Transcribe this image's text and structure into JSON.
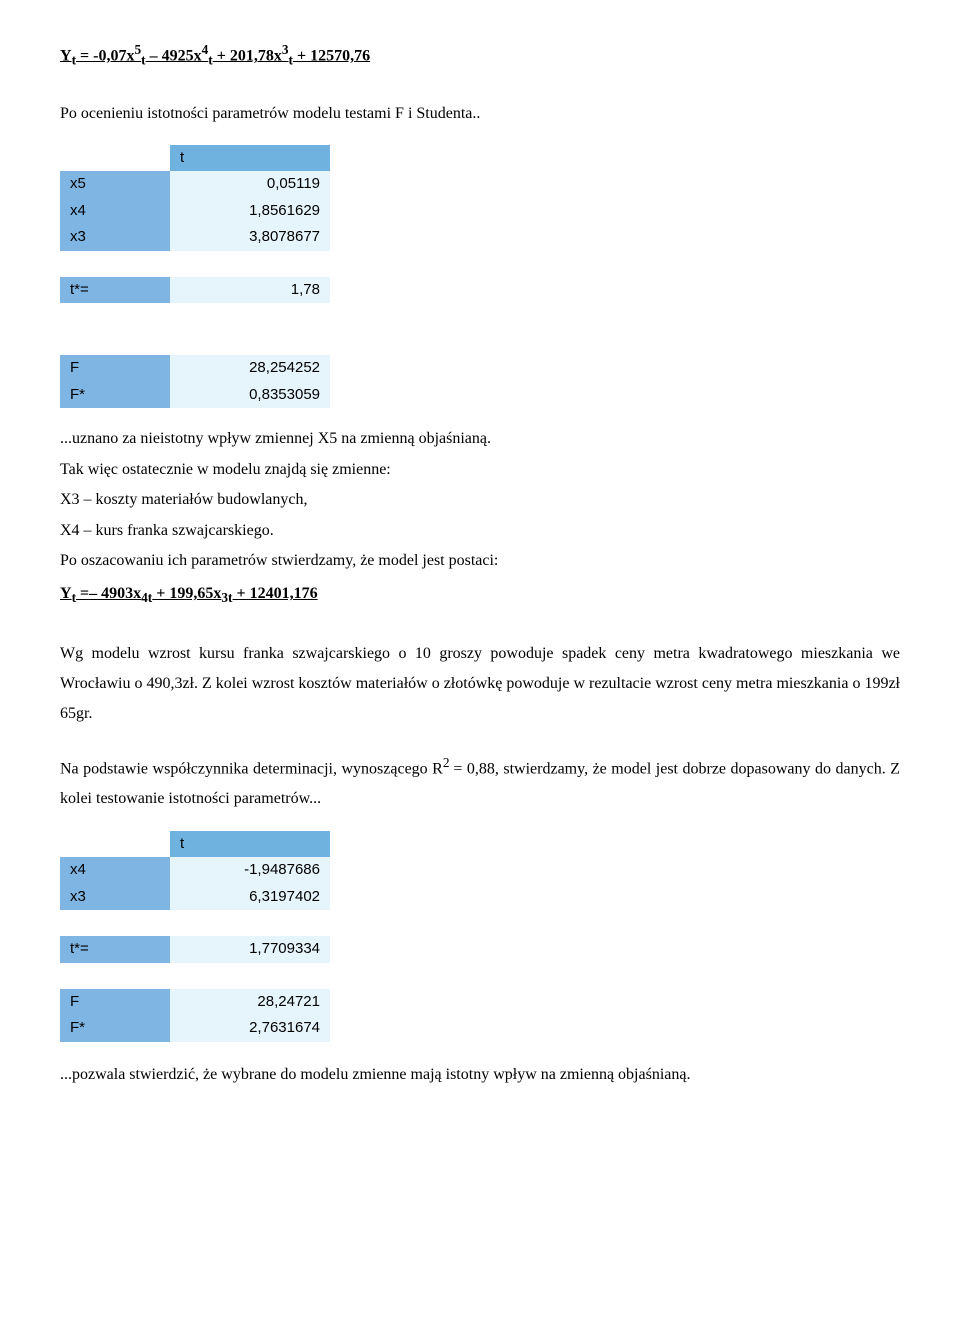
{
  "formula1_html": "Y<sub>t</sub> = -0,07x<sup>5</sup><sub>t</sub> – 4925x<sup>4</sup><sub>t</sub> + 201,78x<sup>3</sup><sub>t</sub> + 12570,76",
  "text_intro": "Po ocenieniu istotności parametrów modelu testami F i Studenta..",
  "table1": {
    "header_col": "t",
    "rows": [
      {
        "label": "x5",
        "value": "0,05119"
      },
      {
        "label": "x4",
        "value": "1,8561629"
      },
      {
        "label": "x3",
        "value": "3,8078677"
      }
    ],
    "tstar": {
      "label": "t*=",
      "value": "1,78"
    },
    "F": {
      "label": "F",
      "value": "28,254252"
    },
    "Fs": {
      "label": "F*",
      "value": "0,8353059"
    },
    "colors": {
      "header": "#6fb1df",
      "label": "#7eb5e2",
      "value": "#e6f4fb"
    }
  },
  "para_uznano": "...uznano za nieistotny wpływ zmiennej X5 na zmienną objaśnianą.",
  "para_tak": "Tak więc ostatecznie w modelu znajdą się zmienne:",
  "para_x3": "X3 – koszty materiałów budowlanych,",
  "para_x4": "X4 – kurs franka szwajcarskiego.",
  "para_posz": "Po oszacowaniu ich parametrów stwierdzamy, że model jest postaci:",
  "formula2_html": "Y<sub>t</sub> =– 4903x<sub>4t</sub> + 199,65x<sub>3t</sub> + 12401,176",
  "para_wg": "Wg modelu wzrost kursu franka szwajcarskiego o 10 groszy powoduje spadek ceny metra kwadratowego mieszkania we Wrocławiu o 490,3zł. Z kolei wzrost kosztów materiałów o złotówkę powoduje  w rezultacie wzrost ceny metra mieszkania o 199zł 65gr.",
  "para_na_html": "Na podstawie współczynnika determinacji, wynoszącego R<sup>2 </sup>= 0,88, stwierdzamy, że model jest dobrze dopasowany do danych. Z kolei testowanie istotności parametrów...",
  "table2": {
    "header_col": "t",
    "rows": [
      {
        "label": "x4",
        "value": "-1,9487686"
      },
      {
        "label": "x3",
        "value": "6,3197402"
      }
    ],
    "tstar": {
      "label": "t*=",
      "value": "1,7709334"
    },
    "F": {
      "label": "F",
      "value": "28,24721"
    },
    "Fs": {
      "label": "F*",
      "value": "2,7631674"
    },
    "colors": {
      "header": "#6fb1df",
      "label": "#7eb5e2",
      "value": "#e6f4fb"
    }
  },
  "para_pozwala": "...pozwala stwierdzić, że wybrane do modelu zmienne mają istotny wpływ na zmienną objaśnianą."
}
